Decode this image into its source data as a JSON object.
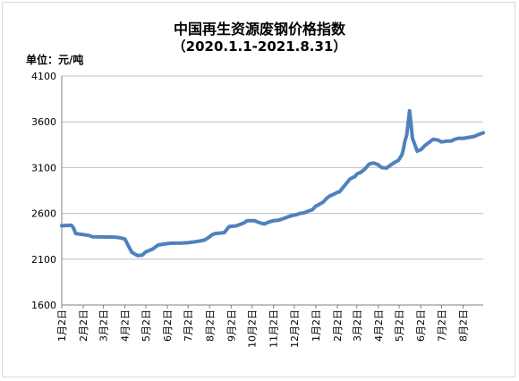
{
  "chart_data": {
    "type": "line",
    "title": "中国再生资源废钢价格指数",
    "subtitle": "（2020.1.1-2021.8.31）",
    "unit_label": "单位：元/吨",
    "ylim": [
      1600,
      4100
    ],
    "yticks": [
      1600,
      2100,
      2600,
      3100,
      3600,
      4100
    ],
    "grid": true,
    "legend": "none",
    "line_color": "#4f81bd",
    "xlim": [
      "2020-01-02",
      "2021-08-31"
    ],
    "x_tick_labels": [
      {
        "date": "2020-01-02",
        "label": "1月2日"
      },
      {
        "date": "2020-02-02",
        "label": "2月2日"
      },
      {
        "date": "2020-03-02",
        "label": "3月2日"
      },
      {
        "date": "2020-04-02",
        "label": "4月2日"
      },
      {
        "date": "2020-05-02",
        "label": "5月2日"
      },
      {
        "date": "2020-06-02",
        "label": "6月2日"
      },
      {
        "date": "2020-07-02",
        "label": "7月2日"
      },
      {
        "date": "2020-08-02",
        "label": "8月2日"
      },
      {
        "date": "2020-09-02",
        "label": "9月2日"
      },
      {
        "date": "2020-10-02",
        "label": "10月2日"
      },
      {
        "date": "2020-11-02",
        "label": "11月2日"
      },
      {
        "date": "2020-12-02",
        "label": "12月2日"
      },
      {
        "date": "2021-01-02",
        "label": "1月2日"
      },
      {
        "date": "2021-02-02",
        "label": "2月2日"
      },
      {
        "date": "2021-03-02",
        "label": "3月2日"
      },
      {
        "date": "2021-04-02",
        "label": "4月2日"
      },
      {
        "date": "2021-05-02",
        "label": "5月2日"
      },
      {
        "date": "2021-06-02",
        "label": "6月2日"
      },
      {
        "date": "2021-07-02",
        "label": "7月2日"
      },
      {
        "date": "2021-08-02",
        "label": "8月2日"
      }
    ],
    "series": [
      {
        "x": [
          "2020-01-02",
          "2020-01-16",
          "2020-01-19",
          "2020-01-22",
          "2020-02-10",
          "2020-02-15",
          "2020-03-20",
          "2020-03-28",
          "2020-04-02",
          "2020-04-07",
          "2020-04-12",
          "2020-04-20",
          "2020-04-27",
          "2020-05-02",
          "2020-05-12",
          "2020-05-20",
          "2020-06-02",
          "2020-06-08",
          "2020-06-20",
          "2020-07-02",
          "2020-07-12",
          "2020-07-20",
          "2020-07-26",
          "2020-08-02",
          "2020-08-05",
          "2020-08-10",
          "2020-08-23",
          "2020-08-30",
          "2020-09-10",
          "2020-09-20",
          "2020-09-25",
          "2020-10-06",
          "2020-10-12",
          "2020-10-20",
          "2020-10-26",
          "2020-11-02",
          "2020-11-09",
          "2020-11-15",
          "2020-11-22",
          "2020-11-28",
          "2020-12-05",
          "2020-12-10",
          "2020-12-16",
          "2020-12-22",
          "2020-12-28",
          "2021-01-02",
          "2021-01-06",
          "2021-01-12",
          "2021-01-17",
          "2021-01-22",
          "2021-01-28",
          "2021-02-02",
          "2021-02-05",
          "2021-02-12",
          "2021-02-20",
          "2021-02-27",
          "2021-03-02",
          "2021-03-08",
          "2021-03-13",
          "2021-03-20",
          "2021-03-26",
          "2021-04-02",
          "2021-04-07",
          "2021-04-14",
          "2021-04-20",
          "2021-04-26",
          "2021-05-01",
          "2021-05-06",
          "2021-05-08",
          "2021-05-10",
          "2021-05-13",
          "2021-05-17",
          "2021-05-19",
          "2021-05-21",
          "2021-05-28",
          "2021-06-03",
          "2021-06-08",
          "2021-06-13",
          "2021-06-20",
          "2021-06-27",
          "2021-07-02",
          "2021-07-10",
          "2021-07-16",
          "2021-07-21",
          "2021-07-27",
          "2021-08-03",
          "2021-08-10",
          "2021-08-18",
          "2021-08-24",
          "2021-08-31"
        ],
        "values": [
          2465,
          2470,
          2440,
          2380,
          2360,
          2345,
          2340,
          2330,
          2320,
          2245,
          2175,
          2140,
          2145,
          2180,
          2210,
          2255,
          2270,
          2275,
          2275,
          2280,
          2290,
          2300,
          2310,
          2345,
          2365,
          2380,
          2390,
          2455,
          2465,
          2495,
          2520,
          2520,
          2500,
          2485,
          2505,
          2520,
          2525,
          2540,
          2560,
          2575,
          2585,
          2600,
          2605,
          2625,
          2640,
          2680,
          2695,
          2720,
          2760,
          2790,
          2810,
          2830,
          2835,
          2900,
          2975,
          3000,
          3030,
          3050,
          3080,
          3140,
          3150,
          3130,
          3100,
          3095,
          3130,
          3160,
          3180,
          3240,
          3300,
          3380,
          3460,
          3720,
          3580,
          3420,
          3280,
          3300,
          3340,
          3370,
          3410,
          3400,
          3380,
          3390,
          3390,
          3410,
          3420,
          3420,
          3430,
          3440,
          3460,
          3480
        ]
      }
    ]
  }
}
